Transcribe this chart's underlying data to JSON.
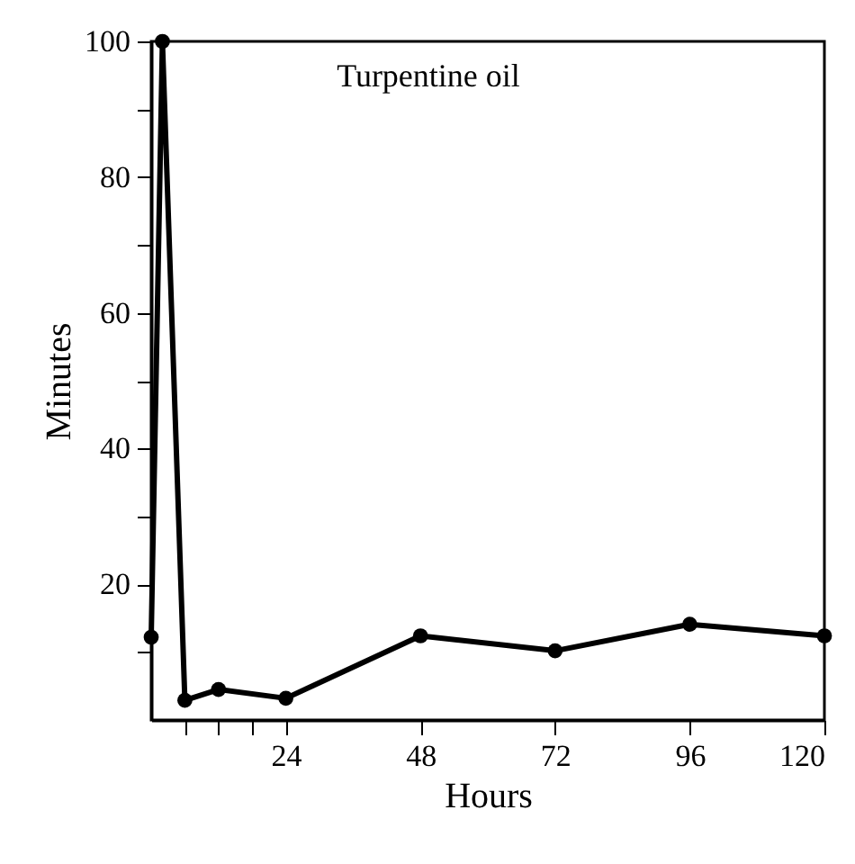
{
  "chart_data": {
    "type": "line",
    "xlabel": "Hours",
    "ylabel": "Minutes",
    "annotations": [
      "Turpentine oil"
    ],
    "x": [
      0,
      2,
      6,
      12,
      24,
      48,
      72,
      96,
      120
    ],
    "series": [
      {
        "color": "#000000",
        "values": [
          12.2,
          100,
          2.9,
          4.5,
          3.2,
          12.4,
          10.2,
          14.1,
          12.4
        ]
      }
    ],
    "xlim": [
      0,
      120
    ],
    "xticks": [
      {
        "value": 6,
        "label": null
      },
      {
        "value": 12,
        "label": null
      },
      {
        "value": 18,
        "label": null
      },
      24,
      48,
      72,
      96,
      120
    ],
    "ylim": [
      0,
      100
    ],
    "yticks": [
      {
        "value": 10,
        "label": null
      },
      20,
      {
        "value": 30,
        "label": null
      },
      40,
      {
        "value": 50,
        "label": null
      },
      60,
      {
        "value": 70,
        "label": null
      },
      80,
      {
        "value": 90,
        "label": null
      },
      100
    ],
    "marker": "circle",
    "line_style": "solid"
  }
}
